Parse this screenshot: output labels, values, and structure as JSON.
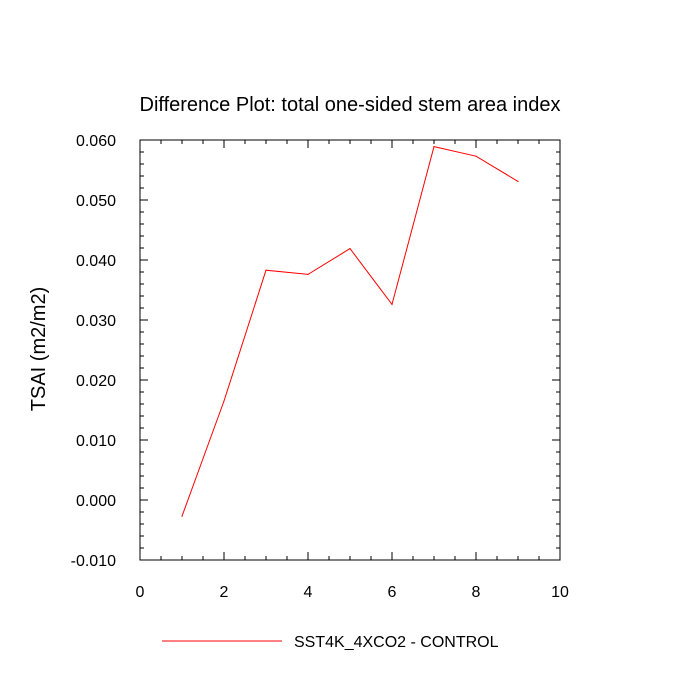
{
  "chart_data": {
    "type": "line",
    "title": "Difference Plot: total one-sided stem area index",
    "xlabel": "",
    "ylabel": "TSAI  (m2/m2)",
    "xlim": [
      0,
      10
    ],
    "ylim": [
      -0.01,
      0.06
    ],
    "x_ticks": [
      "0",
      "2",
      "4",
      "6",
      "8",
      "10"
    ],
    "y_ticks": [
      "-0.010",
      "0.000",
      "0.010",
      "0.020",
      "0.030",
      "0.040",
      "0.050",
      "0.060"
    ],
    "grid": false,
    "legend_position": "bottom",
    "series": [
      {
        "name": "SST4K_4XCO2 - CONTROL",
        "color": "#ff0000",
        "x": [
          1,
          2,
          3,
          4,
          5,
          6,
          7,
          8,
          9
        ],
        "values": [
          -0.0027,
          0.0165,
          0.0383,
          0.0376,
          0.0419,
          0.0326,
          0.0589,
          0.0573,
          0.0531
        ]
      }
    ]
  }
}
